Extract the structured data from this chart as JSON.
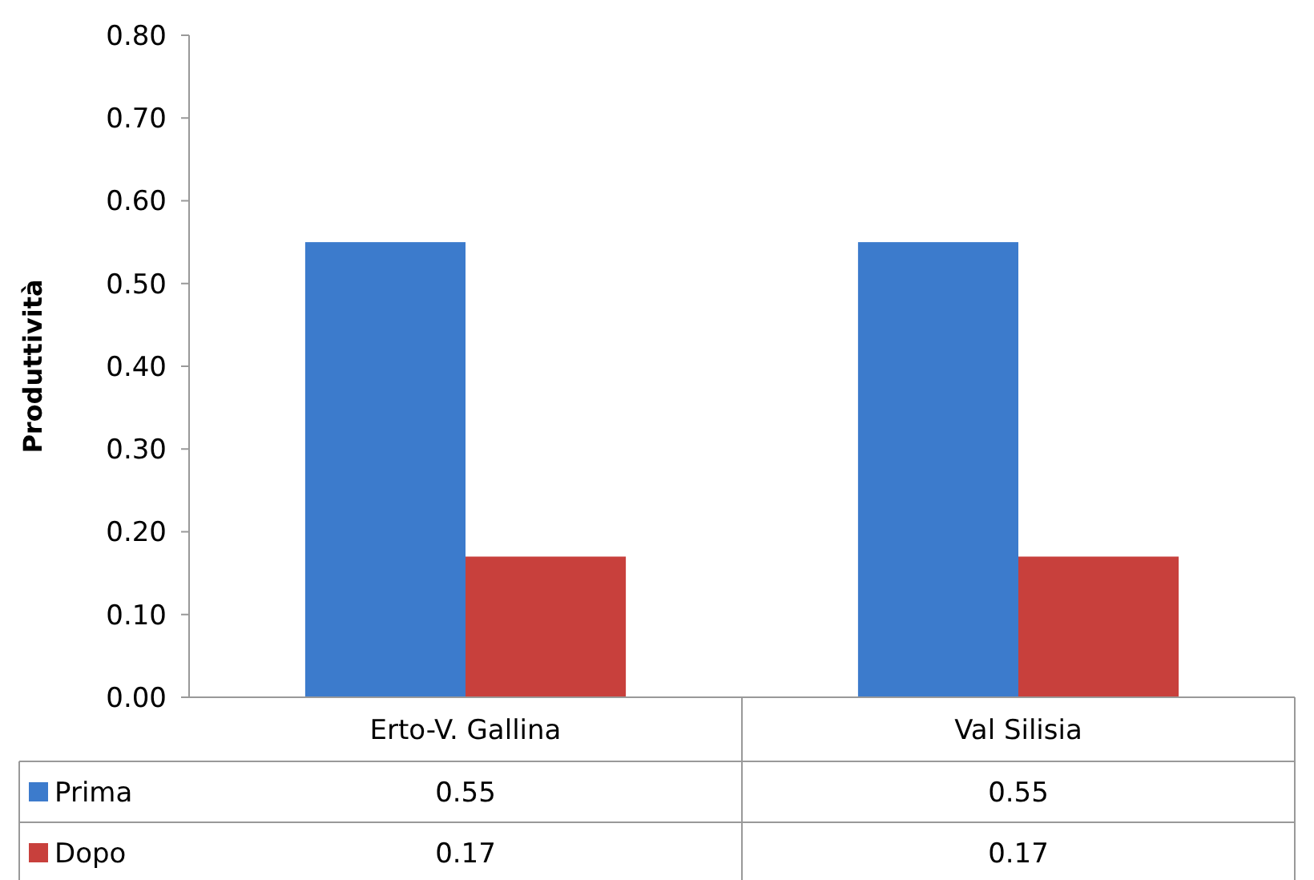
{
  "chart_data": {
    "type": "bar",
    "ylabel": "Produttività",
    "categories": [
      "Erto-V. Gallina",
      "Val Silisia"
    ],
    "series": [
      {
        "name": "Prima",
        "color": "#3c7bcc",
        "values": [
          0.55,
          0.55
        ]
      },
      {
        "name": "Dopo",
        "color": "#c8403c",
        "values": [
          0.17,
          0.17
        ]
      }
    ],
    "ylim": [
      0,
      0.8
    ],
    "yticks": [
      {
        "value": 0,
        "label": "0.00"
      },
      {
        "value": 0.1,
        "label": "0.10"
      },
      {
        "value": 0.2,
        "label": "0.20"
      },
      {
        "value": 0.3,
        "label": "0.30"
      },
      {
        "value": 0.4,
        "label": "0.40"
      },
      {
        "value": 0.5,
        "label": "0.50"
      },
      {
        "value": 0.6,
        "label": "0.60"
      },
      {
        "value": 0.7,
        "label": "0.70"
      },
      {
        "value": 0.8,
        "label": "0.80"
      }
    ],
    "grid": false,
    "legend": "bottom",
    "data_labels": true
  }
}
